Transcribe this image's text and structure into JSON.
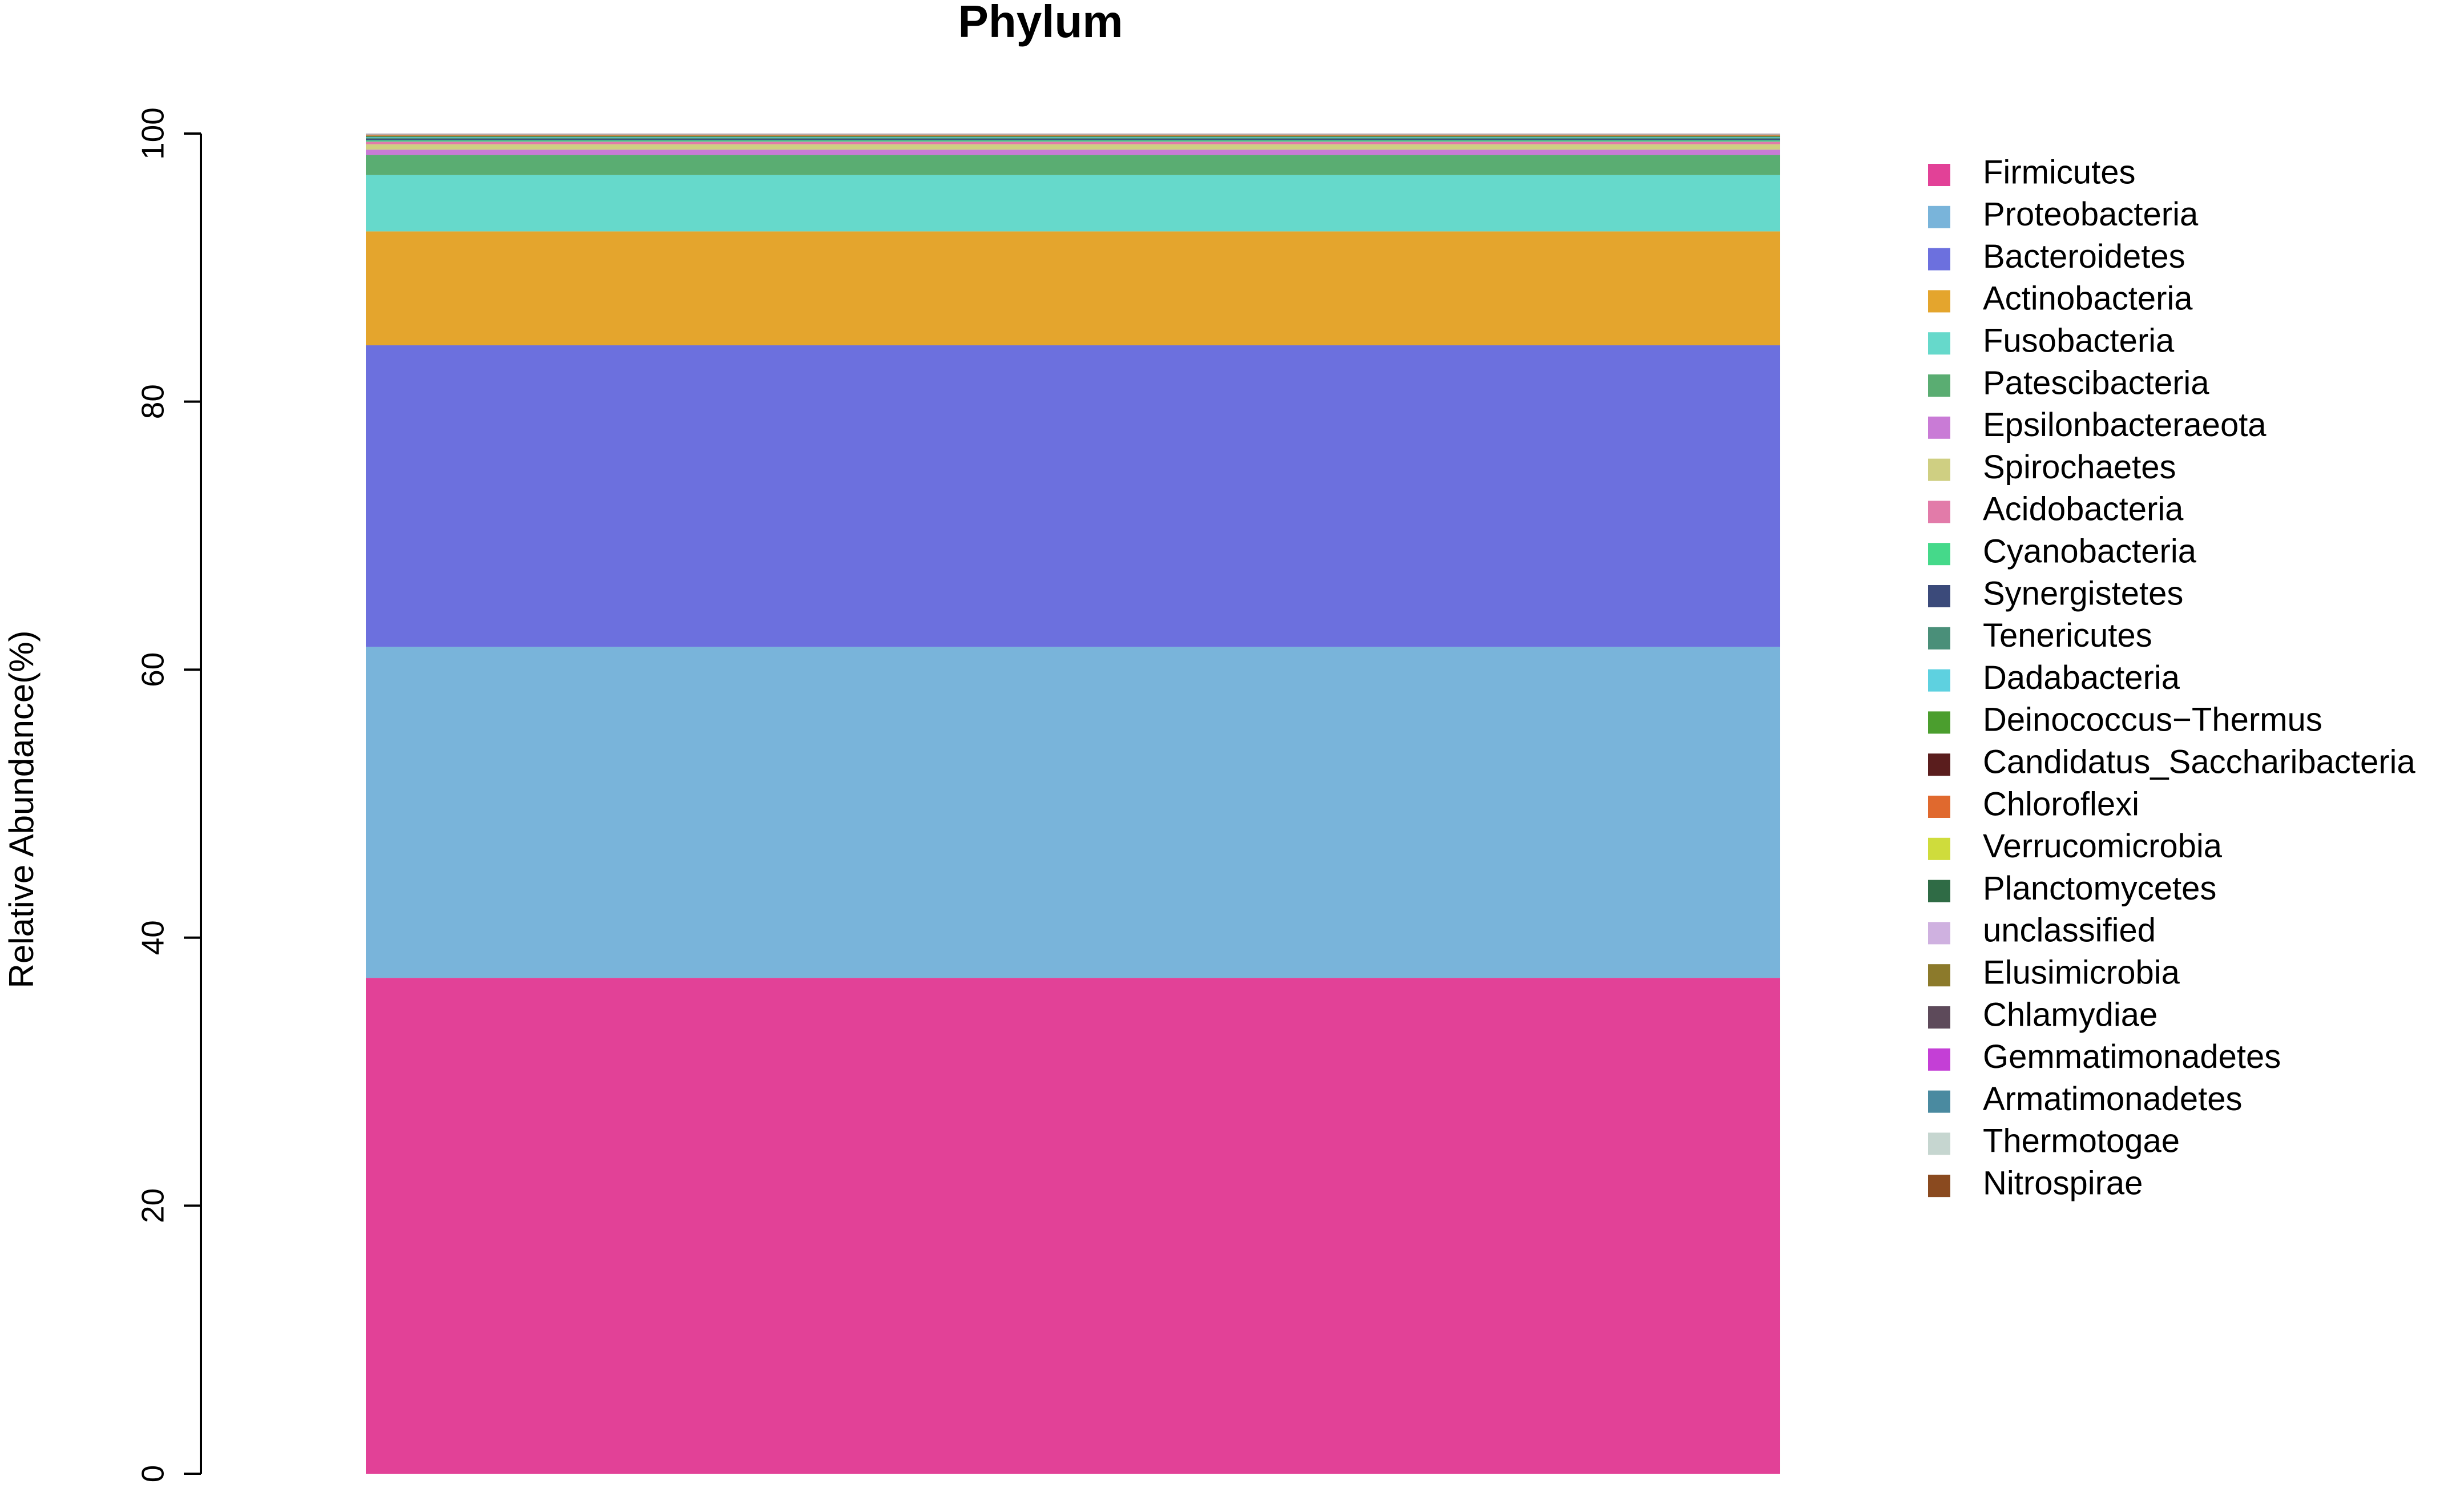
{
  "chart_data": {
    "type": "stacked_bar",
    "title": "Phylum",
    "y_label": "Relative Abundance(%)",
    "categories": [
      null
    ],
    "ylim": [
      0,
      100
    ],
    "yticks": [
      0,
      20,
      40,
      60,
      80,
      100
    ],
    "grid": false,
    "legend": "right",
    "series": [
      {
        "name": "Firmicutes",
        "color": "#e24197",
        "values": [
          37
        ]
      },
      {
        "name": "Proteobacteria",
        "color": "#79b4da",
        "values": [
          24.7
        ]
      },
      {
        "name": "Bacteroidetes",
        "color": "#6c70de",
        "values": [
          22.5
        ]
      },
      {
        "name": "Actinobacteria",
        "color": "#e4a52d",
        "values": [
          8.5
        ]
      },
      {
        "name": "Fusobacteria",
        "color": "#66d9cb",
        "values": [
          4.2
        ]
      },
      {
        "name": "Patescibacteria",
        "color": "#5aad72",
        "values": [
          1.5
        ]
      },
      {
        "name": "Epsilonbacteraeota",
        "color": "#c97bd6",
        "values": [
          0.4
        ]
      },
      {
        "name": "Spirochaetes",
        "color": "#cfcf82",
        "values": [
          0.4
        ]
      },
      {
        "name": "Acidobacteria",
        "color": "#e27ba9",
        "values": [
          0.2
        ]
      },
      {
        "name": "Cyanobacteria",
        "color": "#45d98a",
        "values": [
          0.1
        ]
      },
      {
        "name": "Synergistetes",
        "color": "#3b4a7a",
        "values": [
          0.1
        ]
      },
      {
        "name": "Tenericutes",
        "color": "#4a8f79",
        "values": [
          0.1
        ]
      },
      {
        "name": "Dadabacteria",
        "color": "#5ed1e0",
        "values": [
          0.05
        ]
      },
      {
        "name": "Deinococcus−Thermus",
        "color": "#4b9e2e",
        "values": [
          0.05
        ]
      },
      {
        "name": "Candidatus_Saccharibacteria",
        "color": "#5a1d1d",
        "values": [
          0.04
        ]
      },
      {
        "name": "Chloroflexi",
        "color": "#e0692e",
        "values": [
          0.03
        ]
      },
      {
        "name": "Verrucomicrobia",
        "color": "#cfdc3c",
        "values": [
          0.03
        ]
      },
      {
        "name": "Planctomycetes",
        "color": "#2f6b45",
        "values": [
          0.02
        ]
      },
      {
        "name": "unclassified",
        "color": "#cfb1e0",
        "values": [
          0.02
        ]
      },
      {
        "name": "Elusimicrobia",
        "color": "#8c7a2b",
        "values": [
          0.01
        ]
      },
      {
        "name": "Chlamydiae",
        "color": "#5d4a5a",
        "values": [
          0.01
        ]
      },
      {
        "name": "Gemmatimonadetes",
        "color": "#c43fd6",
        "values": [
          0.01
        ]
      },
      {
        "name": "Armatimonadetes",
        "color": "#4a8aa0",
        "values": [
          0.01
        ]
      },
      {
        "name": "Thermotogae",
        "color": "#c6d6d0",
        "values": [
          0.01
        ]
      },
      {
        "name": "Nitrospirae",
        "color": "#8a4a1f",
        "values": [
          0.01
        ]
      }
    ]
  }
}
